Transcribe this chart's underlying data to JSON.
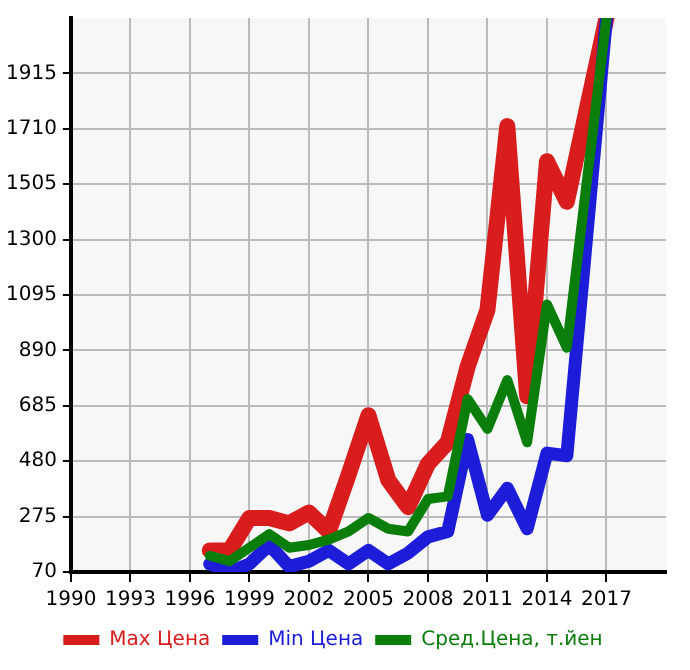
{
  "chart_data": {
    "type": "line",
    "x": [
      1997,
      1998,
      1999,
      2000,
      2001,
      2002,
      2003,
      2004,
      2005,
      2006,
      2007,
      2008,
      2009,
      2010,
      2011,
      2012,
      2013,
      2014,
      2015,
      2017
    ],
    "series": [
      {
        "name": "Max Цена",
        "color": "#d91c1c",
        "values": [
          150,
          150,
          270,
          270,
          250,
          290,
          220,
          430,
          650,
          410,
          310,
          470,
          550,
          830,
          1040,
          1720,
          720,
          1590,
          1440,
          2120
        ]
      },
      {
        "name": "Min Цена",
        "color": "#1c1cd9",
        "values": [
          100,
          70,
          100,
          170,
          90,
          110,
          150,
          100,
          150,
          100,
          140,
          200,
          220,
          560,
          280,
          380,
          230,
          510,
          500,
          2120
        ]
      },
      {
        "name": "Сред.Цена, т.йен",
        "color": "#0a7d0a",
        "values": [
          130,
          110,
          160,
          210,
          160,
          170,
          190,
          220,
          270,
          230,
          220,
          340,
          350,
          710,
          600,
          780,
          550,
          1060,
          900,
          2120
        ]
      }
    ],
    "xlim": [
      1990,
      2020
    ],
    "xticks": [
      1990,
      1993,
      1996,
      1999,
      2002,
      2005,
      2008,
      2011,
      2014,
      2017
    ],
    "ylim": [
      70,
      2120
    ],
    "yticks": [
      70,
      275,
      480,
      685,
      890,
      1095,
      1300,
      1505,
      1710,
      1915
    ],
    "grid": true,
    "legend": "bottom",
    "marker": "none",
    "line_style": "solid"
  }
}
